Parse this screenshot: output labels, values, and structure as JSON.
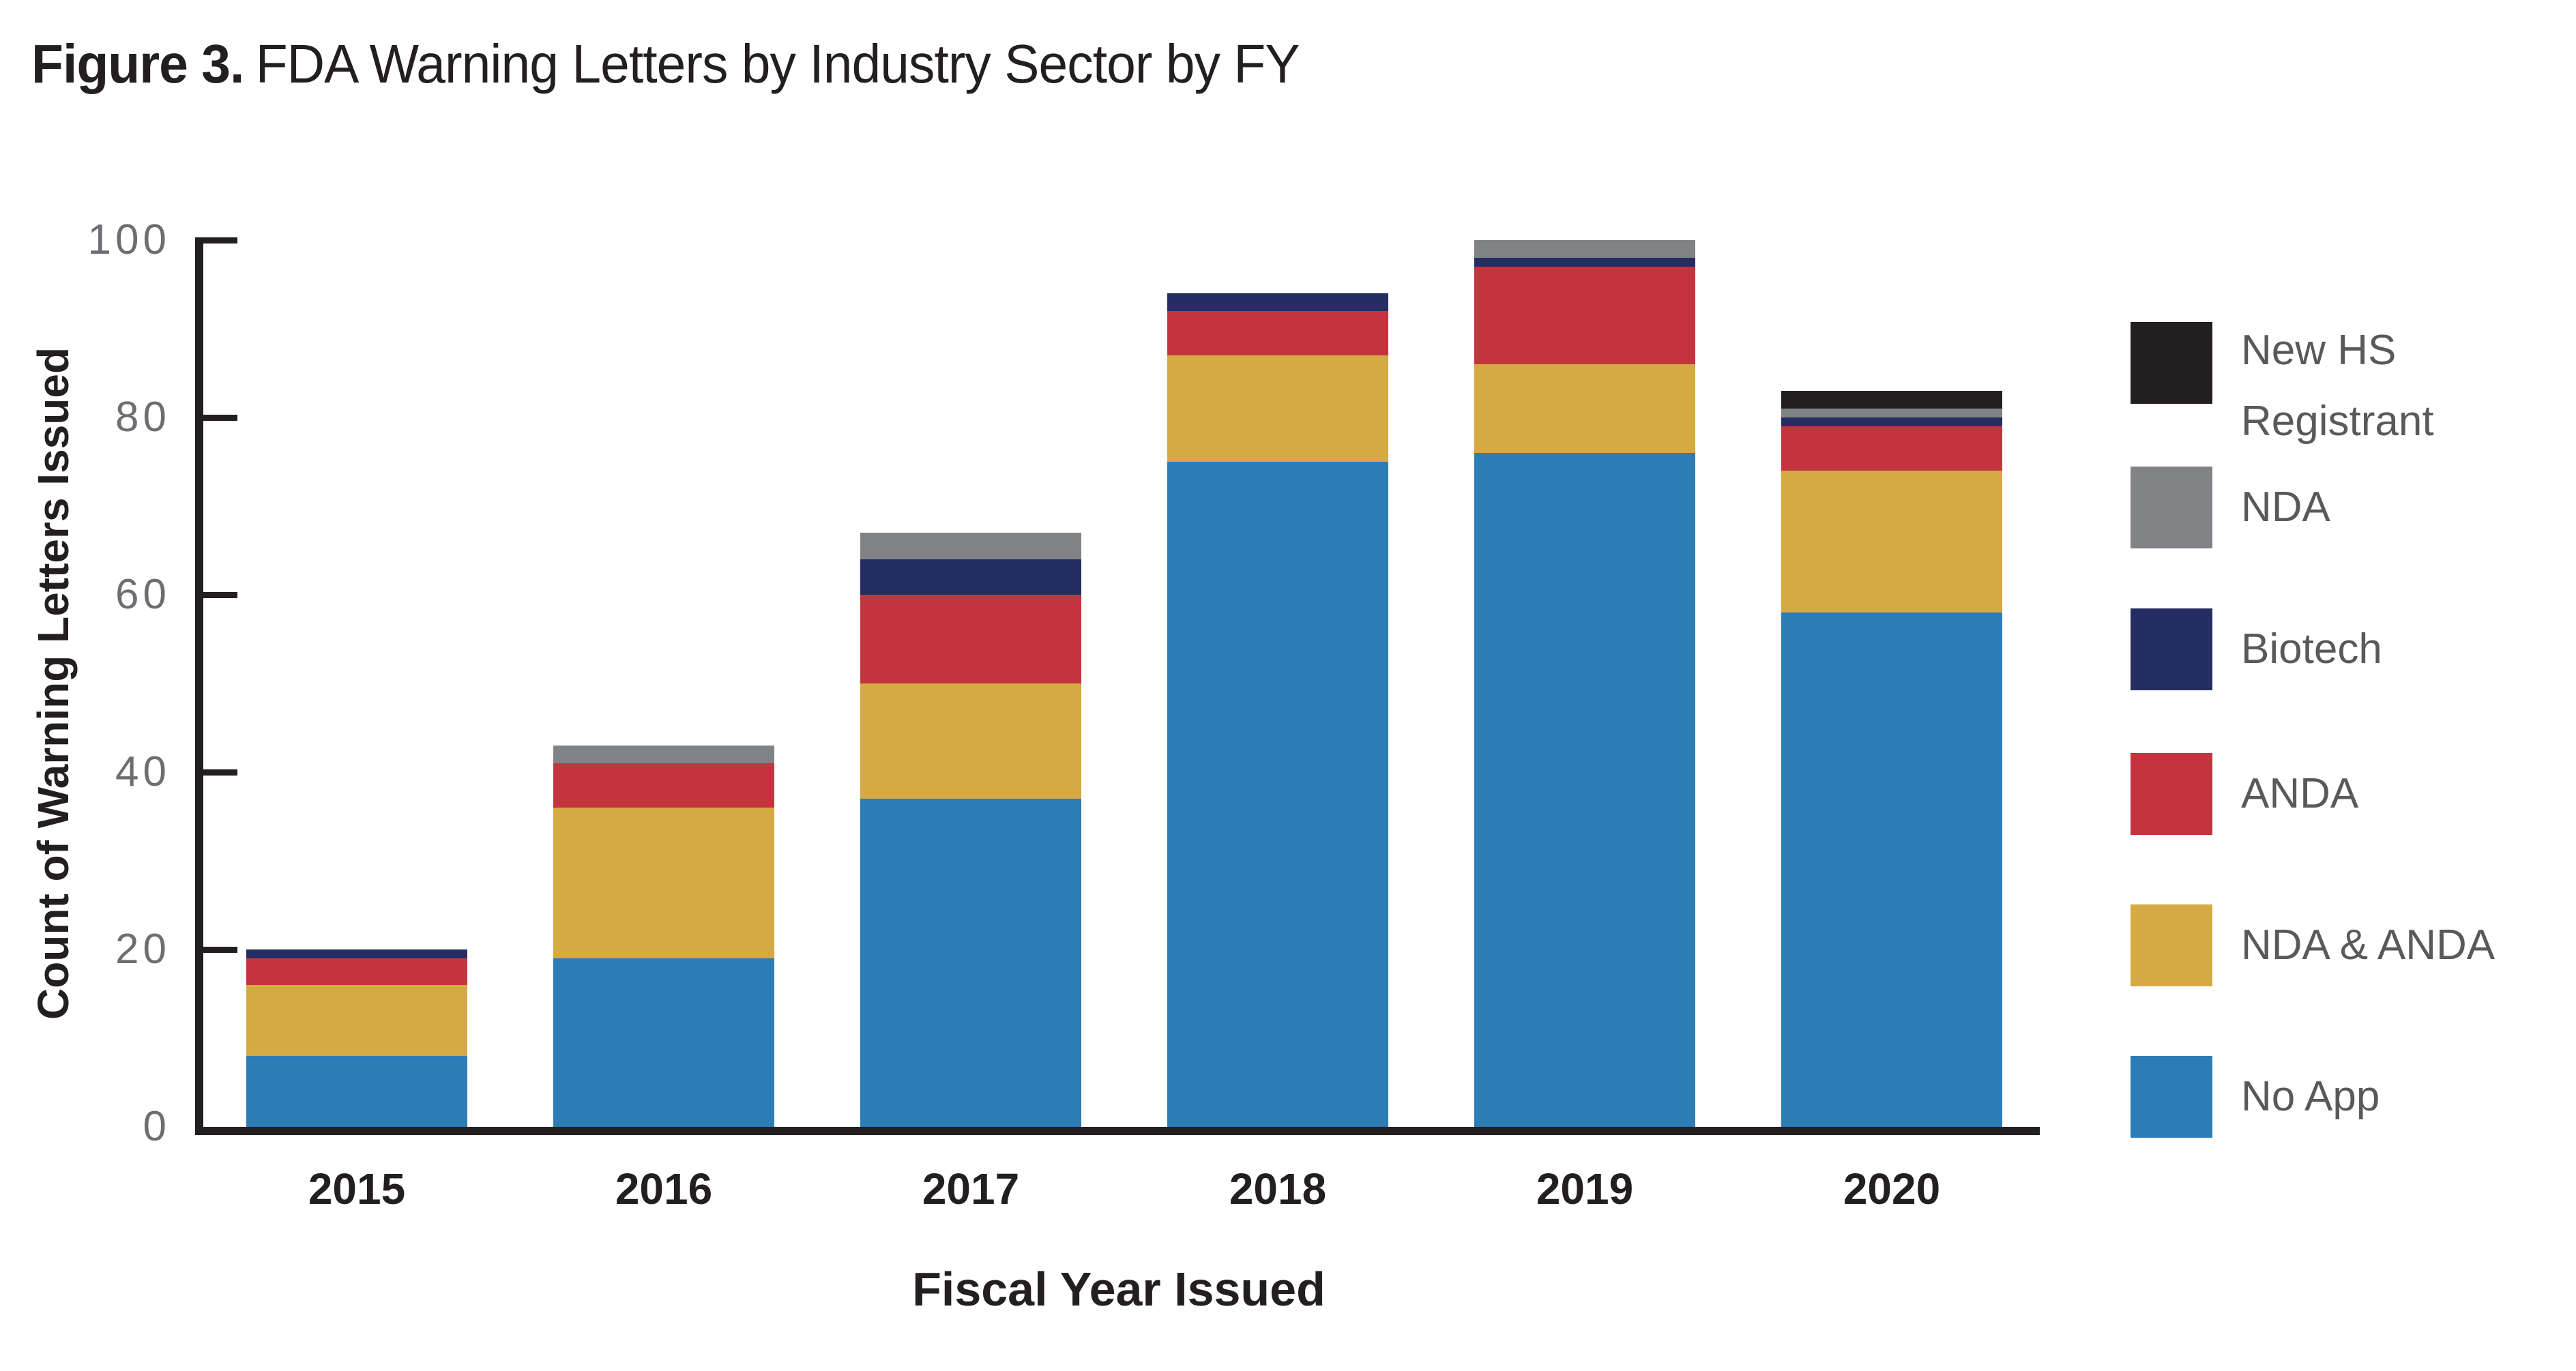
{
  "title": {
    "prefix": "Figure 3.",
    "text": "FDA Warning Letters by Industry Sector by FY"
  },
  "y_axis": {
    "label": "Count of Warning Letters Issued",
    "tick_color": "#6d6e71"
  },
  "x_axis": {
    "label": "Fiscal Year Issued"
  },
  "colors": {
    "axis": "#231f20",
    "title_text": "#231f20",
    "tick_text": "#6d6e71",
    "legend_text": "#58595b",
    "background": "#ffffff"
  },
  "chart_data": {
    "type": "bar",
    "stacked": true,
    "title": "Figure 3. FDA Warning Letters by Industry Sector by FY",
    "xlabel": "Fiscal Year Issued",
    "ylabel": "Count of Warning Letters Issued",
    "ylim": [
      0,
      100
    ],
    "yticks": [
      0,
      20,
      40,
      60,
      80,
      100
    ],
    "grid": false,
    "legend_position": "right",
    "legend_order_top_to_bottom": [
      "New HS Registrant",
      "NDA",
      "Biotech",
      "ANDA",
      "NDA & ANDA",
      "No App"
    ],
    "categories": [
      "2015",
      "2016",
      "2017",
      "2018",
      "2019",
      "2020"
    ],
    "series": [
      {
        "name": "No App",
        "color": "#2c7db5",
        "values": [
          8,
          19,
          37,
          75,
          76,
          58
        ]
      },
      {
        "name": "NDA & ANDA",
        "color": "#d5a943",
        "values": [
          8,
          17,
          13,
          12,
          10,
          16
        ]
      },
      {
        "name": "ANDA",
        "color": "#c4343e",
        "values": [
          3,
          5,
          10,
          5,
          11,
          5
        ]
      },
      {
        "name": "Biotech",
        "color": "#252d62",
        "values": [
          1,
          0,
          4,
          2,
          1,
          1
        ]
      },
      {
        "name": "NDA",
        "color": "#808285",
        "values": [
          0,
          2,
          3,
          0,
          2,
          1
        ]
      },
      {
        "name": "New HS Registrant",
        "color": "#231f20",
        "values": [
          0,
          0,
          0,
          0,
          0,
          2
        ]
      }
    ],
    "totals": [
      20,
      43,
      67,
      94,
      100,
      83
    ]
  }
}
